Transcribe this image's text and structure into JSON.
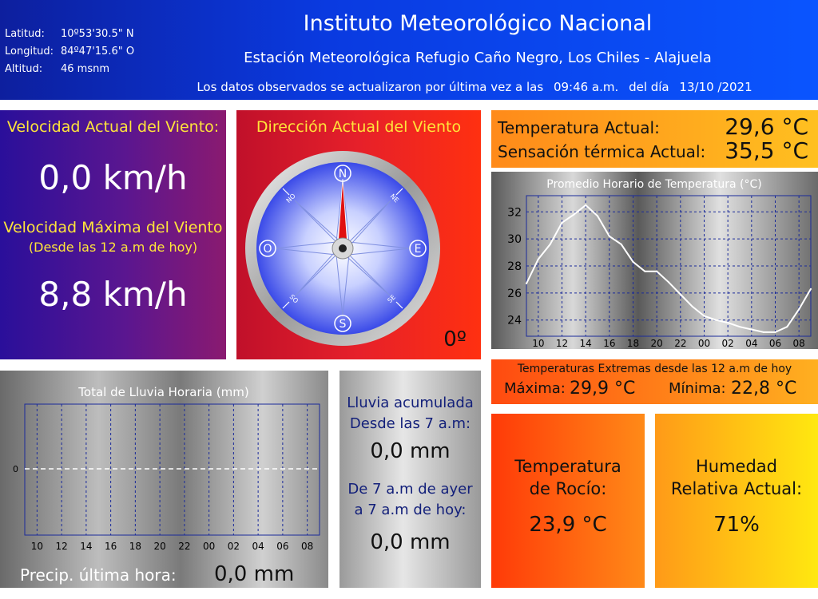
{
  "header": {
    "latitude_label": "Latitud:",
    "latitude_value": "10º53'30.5\" N",
    "longitude_label": "Longitud:",
    "longitude_value": "84º47'15.6\" O",
    "altitude_label": "Altitud:",
    "altitude_value": "46 msnm",
    "title": "Instituto Meteorológico Nacional",
    "station": "Estación Meteorológica Refugio Caño Negro, Los Chiles - Alajuela",
    "updated_text": "Los datos observados se actualizaron por última vez a las",
    "updated_time": "09:46 a.m.",
    "updated_day_label": "del día",
    "updated_date": "13/10 /2021"
  },
  "wind": {
    "current_title": "Velocidad Actual del Viento:",
    "current_value": "0,0 km/h",
    "max_title": "Velocidad Máxima del Viento",
    "max_subtitle": "(Desde las 12 a.m de hoy)",
    "max_value": "8,8 km/h",
    "direction_title": "Dirección Actual del Viento",
    "direction_value": "0º",
    "direction_degrees": 0,
    "compass_labels": {
      "n": "N",
      "s": "S",
      "e": "E",
      "o": "O",
      "ne": "NE",
      "no": "NO",
      "se": "SE",
      "so": "SO"
    }
  },
  "temperature": {
    "current_label": "Temperatura Actual:",
    "current_value": "29,6 °C",
    "feels_label": "Sensación térmica Actual:",
    "feels_value": "35,5 °C",
    "extremes_title": "Temperaturas Extremas desde las 12 a.m de hoy",
    "max_label": "Máxima:",
    "max_value": "29,9 °C",
    "min_label": "Mínima:",
    "min_value": "22,8 °C"
  },
  "dew_point": {
    "title_line1": "Temperatura",
    "title_line2": "de Rocío:",
    "value": "23,9 °C"
  },
  "humidity": {
    "title_line1": "Humedad",
    "title_line2": "Relativa Actual:",
    "value": "71%"
  },
  "rain": {
    "acc_title_line1": "Lluvia acumulada",
    "acc_title_line2": "Desde las 7 a.m:",
    "acc_value": "0,0 mm",
    "yesterday_line1": "De 7 a.m de ayer",
    "yesterday_line2": "a 7 a.m de hoy:",
    "yesterday_value": "0,0 mm",
    "last_hour_label": "Precip. última hora:",
    "last_hour_value": "0,0 mm"
  },
  "chart_data": [
    {
      "type": "line",
      "title": "Promedio Horario de Temperatura (°C)",
      "xlabel": "",
      "ylabel": "",
      "x_ticks": [
        "10",
        "12",
        "14",
        "16",
        "18",
        "20",
        "22",
        "00",
        "02",
        "04",
        "06",
        "08"
      ],
      "y_ticks": [
        24,
        26,
        28,
        30,
        32
      ],
      "ylim": [
        22.8,
        33.2
      ],
      "grid": true,
      "series": [
        {
          "x": [
            9,
            10,
            11,
            12,
            13,
            14,
            15,
            16,
            17,
            18,
            19,
            20,
            21,
            22,
            23,
            24,
            25,
            26,
            27,
            28,
            29,
            30,
            31,
            32,
            33
          ],
          "values": [
            26.7,
            28.5,
            29.6,
            31.2,
            31.8,
            32.5,
            31.7,
            30.2,
            29.6,
            28.3,
            27.6,
            27.6,
            26.8,
            25.9,
            25.0,
            24.3,
            24.0,
            23.8,
            23.5,
            23.3,
            23.1,
            23.1,
            23.5,
            24.8,
            26.3
          ]
        }
      ]
    },
    {
      "type": "bar",
      "title": "Total de Lluvia Horaria (mm)",
      "xlabel": "",
      "ylabel": "",
      "categories": [
        "10",
        "12",
        "14",
        "16",
        "18",
        "20",
        "22",
        "00",
        "02",
        "04",
        "06",
        "08"
      ],
      "y_ticks": [
        0
      ],
      "grid": true,
      "values": [
        0,
        0,
        0,
        0,
        0,
        0,
        0,
        0,
        0,
        0,
        0,
        0
      ]
    }
  ]
}
